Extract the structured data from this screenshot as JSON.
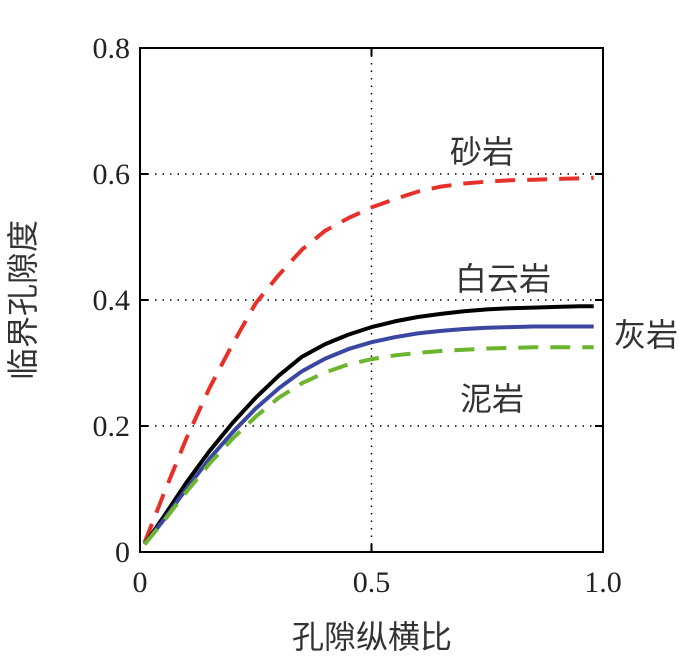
{
  "chart_data": {
    "type": "line",
    "title": "",
    "xlabel": "孔隙纵横比",
    "ylabel": "临界孔隙度",
    "xlim": [
      0,
      1.0
    ],
    "ylim": [
      0,
      0.8
    ],
    "xticks": [
      0,
      0.5,
      1.0
    ],
    "xtick_labels": [
      "0",
      "0.5",
      "1.0"
    ],
    "yticks": [
      0,
      0.2,
      0.4,
      0.6,
      0.8
    ],
    "ytick_labels": [
      "0",
      "0.2",
      "0.4",
      "0.6",
      "0.8"
    ],
    "grid": "dotted",
    "legend": "none",
    "series": [
      {
        "name": "砂岩",
        "color": "#e8302a",
        "dash": "dashed",
        "x": [
          0.01,
          0.05,
          0.1,
          0.15,
          0.2,
          0.25,
          0.3,
          0.35,
          0.4,
          0.45,
          0.5,
          0.55,
          0.6,
          0.65,
          0.7,
          0.75,
          0.8,
          0.85,
          0.9,
          0.95,
          0.98
        ],
        "y": [
          0.015,
          0.09,
          0.18,
          0.26,
          0.33,
          0.395,
          0.44,
          0.48,
          0.51,
          0.53,
          0.547,
          0.56,
          0.572,
          0.58,
          0.585,
          0.588,
          0.59,
          0.591,
          0.592,
          0.593,
          0.594
        ]
      },
      {
        "name": "白云岩",
        "color": "#000000",
        "dash": "solid",
        "x": [
          0.01,
          0.05,
          0.1,
          0.15,
          0.2,
          0.25,
          0.3,
          0.35,
          0.4,
          0.45,
          0.5,
          0.55,
          0.6,
          0.65,
          0.7,
          0.75,
          0.8,
          0.85,
          0.9,
          0.95,
          0.98
        ],
        "y": [
          0.012,
          0.055,
          0.11,
          0.16,
          0.205,
          0.245,
          0.28,
          0.31,
          0.33,
          0.345,
          0.357,
          0.366,
          0.373,
          0.378,
          0.382,
          0.385,
          0.387,
          0.388,
          0.389,
          0.39,
          0.39
        ]
      },
      {
        "name": "灰岩",
        "color": "#3a46a0",
        "dash": "solid",
        "x": [
          0.01,
          0.05,
          0.1,
          0.15,
          0.2,
          0.25,
          0.3,
          0.35,
          0.4,
          0.45,
          0.5,
          0.55,
          0.6,
          0.65,
          0.7,
          0.75,
          0.8,
          0.85,
          0.9,
          0.95,
          0.98
        ],
        "y": [
          0.012,
          0.05,
          0.1,
          0.148,
          0.19,
          0.228,
          0.26,
          0.287,
          0.307,
          0.322,
          0.333,
          0.341,
          0.347,
          0.351,
          0.354,
          0.356,
          0.357,
          0.358,
          0.358,
          0.358,
          0.358
        ]
      },
      {
        "name": "泥岩",
        "color": "#6cb52e",
        "dash": "dashed",
        "x": [
          0.01,
          0.05,
          0.1,
          0.15,
          0.2,
          0.25,
          0.3,
          0.35,
          0.4,
          0.45,
          0.5,
          0.55,
          0.6,
          0.65,
          0.7,
          0.75,
          0.8,
          0.85,
          0.9,
          0.95,
          0.98
        ],
        "y": [
          0.012,
          0.048,
          0.095,
          0.14,
          0.18,
          0.215,
          0.245,
          0.268,
          0.285,
          0.298,
          0.306,
          0.312,
          0.316,
          0.319,
          0.321,
          0.323,
          0.324,
          0.325,
          0.325,
          0.325,
          0.325
        ]
      }
    ],
    "annotations": [
      {
        "text": "砂岩",
        "series": "砂岩"
      },
      {
        "text": "白云岩",
        "series": "白云岩"
      },
      {
        "text": "灰岩",
        "series": "灰岩"
      },
      {
        "text": "泥岩",
        "series": "泥岩"
      }
    ]
  }
}
